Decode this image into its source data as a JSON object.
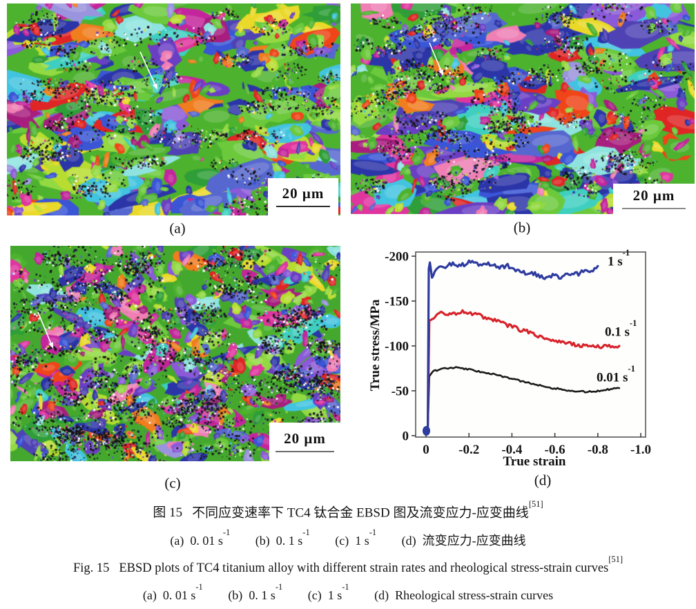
{
  "figure": {
    "scale_bar_text": "20 μm",
    "panels": [
      {
        "id": "a",
        "label": "(a)"
      },
      {
        "id": "b",
        "label": "(b)"
      },
      {
        "id": "c",
        "label": "(c)"
      },
      {
        "id": "d",
        "label": "(d)"
      }
    ]
  },
  "chart_data": {
    "type": "line",
    "title": "",
    "xlabel": "True strain",
    "ylabel": "True stress/MPa",
    "xlim": [
      0.05,
      -1.07
    ],
    "ylim": [
      3,
      -204
    ],
    "grid": false,
    "legend_position": "labels-at-curve-ends",
    "x_tick_labels": [
      "0",
      "-0.2",
      "-0.4",
      "-0.6",
      "-0.8",
      "-1.0"
    ],
    "x_tick_values": [
      0,
      -0.2,
      -0.4,
      -0.6,
      -0.8,
      -1.0
    ],
    "y_tick_labels": [
      "0",
      "-50",
      "-100",
      "-150",
      "-200"
    ],
    "y_tick_values": [
      0,
      -50,
      -100,
      -150,
      -200
    ],
    "series": [
      {
        "name": "0.01 s⁻¹",
        "label_base": "0.01 s",
        "label_sup": "-1",
        "color": "#1a1a1a",
        "noise": 0.9,
        "points": [
          [
            -0.002,
            -2
          ],
          [
            -0.008,
            -3
          ],
          [
            -0.015,
            -66
          ],
          [
            -0.03,
            -71
          ],
          [
            -0.05,
            -73
          ],
          [
            -0.08,
            -75
          ],
          [
            -0.11,
            -75
          ],
          [
            -0.14,
            -76
          ],
          [
            -0.17,
            -75
          ],
          [
            -0.2,
            -74
          ],
          [
            -0.23,
            -72
          ],
          [
            -0.26,
            -71
          ],
          [
            -0.29,
            -70
          ],
          [
            -0.32,
            -68
          ],
          [
            -0.35,
            -66
          ],
          [
            -0.38,
            -65
          ],
          [
            -0.41,
            -63
          ],
          [
            -0.44,
            -61
          ],
          [
            -0.47,
            -59
          ],
          [
            -0.5,
            -58
          ],
          [
            -0.53,
            -56
          ],
          [
            -0.56,
            -55
          ],
          [
            -0.59,
            -53
          ],
          [
            -0.62,
            -52
          ],
          [
            -0.65,
            -51
          ],
          [
            -0.68,
            -50
          ],
          [
            -0.71,
            -49
          ],
          [
            -0.74,
            -49
          ],
          [
            -0.77,
            -49
          ],
          [
            -0.8,
            -50
          ],
          [
            -0.83,
            -51
          ],
          [
            -0.86,
            -52
          ],
          [
            -0.9,
            -53
          ]
        ]
      },
      {
        "name": "0.1 s⁻¹",
        "label_base": "0.1 s",
        "label_sup": "-1",
        "color": "#d6242b",
        "noise": 2.2,
        "points": [
          [
            -0.002,
            -2
          ],
          [
            -0.008,
            -4
          ],
          [
            -0.015,
            -128
          ],
          [
            -0.03,
            -130
          ],
          [
            -0.05,
            -133
          ],
          [
            -0.07,
            -136
          ],
          [
            -0.09,
            -134
          ],
          [
            -0.11,
            -137
          ],
          [
            -0.14,
            -135
          ],
          [
            -0.17,
            -138
          ],
          [
            -0.2,
            -136
          ],
          [
            -0.23,
            -135
          ],
          [
            -0.26,
            -133
          ],
          [
            -0.29,
            -130
          ],
          [
            -0.32,
            -128
          ],
          [
            -0.35,
            -126
          ],
          [
            -0.38,
            -123
          ],
          [
            -0.41,
            -121
          ],
          [
            -0.44,
            -118
          ],
          [
            -0.47,
            -116
          ],
          [
            -0.5,
            -113
          ],
          [
            -0.53,
            -111
          ],
          [
            -0.56,
            -109
          ],
          [
            -0.59,
            -107
          ],
          [
            -0.62,
            -105
          ],
          [
            -0.65,
            -103
          ],
          [
            -0.68,
            -102
          ],
          [
            -0.71,
            -101
          ],
          [
            -0.74,
            -100
          ],
          [
            -0.77,
            -99
          ],
          [
            -0.8,
            -100
          ],
          [
            -0.83,
            -99
          ],
          [
            -0.86,
            -100
          ],
          [
            -0.9,
            -100
          ]
        ]
      },
      {
        "name": "1 s⁻¹",
        "label_base": "1 s",
        "label_sup": "-1",
        "color": "#2e3b9f",
        "noise": 2.6,
        "points": [
          [
            -0.002,
            -3
          ],
          [
            -0.008,
            -5
          ],
          [
            -0.013,
            -186
          ],
          [
            -0.018,
            -193
          ],
          [
            -0.028,
            -176
          ],
          [
            -0.04,
            -181
          ],
          [
            -0.055,
            -186
          ],
          [
            -0.07,
            -188
          ],
          [
            -0.09,
            -186
          ],
          [
            -0.11,
            -190
          ],
          [
            -0.14,
            -191
          ],
          [
            -0.17,
            -190
          ],
          [
            -0.2,
            -194
          ],
          [
            -0.23,
            -191
          ],
          [
            -0.26,
            -189
          ],
          [
            -0.29,
            -192
          ],
          [
            -0.32,
            -190
          ],
          [
            -0.35,
            -187
          ],
          [
            -0.38,
            -189
          ],
          [
            -0.41,
            -184
          ],
          [
            -0.44,
            -183
          ],
          [
            -0.47,
            -180
          ],
          [
            -0.5,
            -181
          ],
          [
            -0.53,
            -178
          ],
          [
            -0.56,
            -176
          ],
          [
            -0.59,
            -179
          ],
          [
            -0.62,
            -177
          ],
          [
            -0.65,
            -178
          ],
          [
            -0.68,
            -180
          ],
          [
            -0.71,
            -181
          ],
          [
            -0.74,
            -184
          ],
          [
            -0.77,
            -184
          ],
          [
            -0.8,
            -189
          ]
        ]
      }
    ]
  },
  "captions": {
    "zh": {
      "fig_label": "图 15",
      "text": "不同应变速率下 TC4 钛合金 EBSD 图及流变应力-应变曲线",
      "ref": "[51]"
    },
    "zh_sub": [
      {
        "label": "(a)",
        "value": "0. 01 s",
        "sup": "-1"
      },
      {
        "label": "(b)",
        "value": "0. 1 s",
        "sup": "-1"
      },
      {
        "label": "(c)",
        "value": "1 s",
        "sup": "-1"
      },
      {
        "label": "(d)",
        "value": "流变应力-应变曲线",
        "sup": ""
      }
    ],
    "en": {
      "fig_label": "Fig. 15",
      "text": "EBSD plots of TC4 titanium alloy with different strain rates and rheological stress-strain curves",
      "ref": "[51]"
    },
    "en_sub": [
      {
        "label": "(a)",
        "value": "0. 01 s",
        "sup": "-1"
      },
      {
        "label": "(b)",
        "value": "0. 1 s",
        "sup": "-1"
      },
      {
        "label": "(c)",
        "value": "1 s",
        "sup": "-1"
      },
      {
        "label": "(d)",
        "value": "Rheological stress-strain curves",
        "sup": ""
      }
    ]
  },
  "ebsd": {
    "arrow_color": "#ffffff",
    "palette": [
      {
        "c": "#4db32e",
        "w": 10
      },
      {
        "c": "#6cc93c",
        "w": 8
      },
      {
        "c": "#93d941",
        "w": 5
      },
      {
        "c": "#2f9e38",
        "w": 4
      },
      {
        "c": "#b8dd30",
        "w": 3
      },
      {
        "c": "#2c35a8",
        "w": 6
      },
      {
        "c": "#3a55d6",
        "w": 4
      },
      {
        "c": "#5668cf",
        "w": 3
      },
      {
        "c": "#42c4e0",
        "w": 3
      },
      {
        "c": "#3ecfc0",
        "w": 2
      },
      {
        "c": "#8fe3de",
        "w": 2
      },
      {
        "c": "#6a3fc4",
        "w": 4
      },
      {
        "c": "#8a5ad8",
        "w": 3
      },
      {
        "c": "#4f42b4",
        "w": 3
      },
      {
        "c": "#9a93dd",
        "w": 2
      },
      {
        "c": "#c4259c",
        "w": 5
      },
      {
        "c": "#e0359f",
        "w": 3
      },
      {
        "c": "#a81e7e",
        "w": 3
      },
      {
        "c": "#e02525",
        "w": 4
      },
      {
        "c": "#ef4518",
        "w": 2
      },
      {
        "c": "#f07d1e",
        "w": 2
      },
      {
        "c": "#ead928",
        "w": 3
      },
      {
        "c": "#ef7fb4",
        "w": 2
      }
    ]
  }
}
